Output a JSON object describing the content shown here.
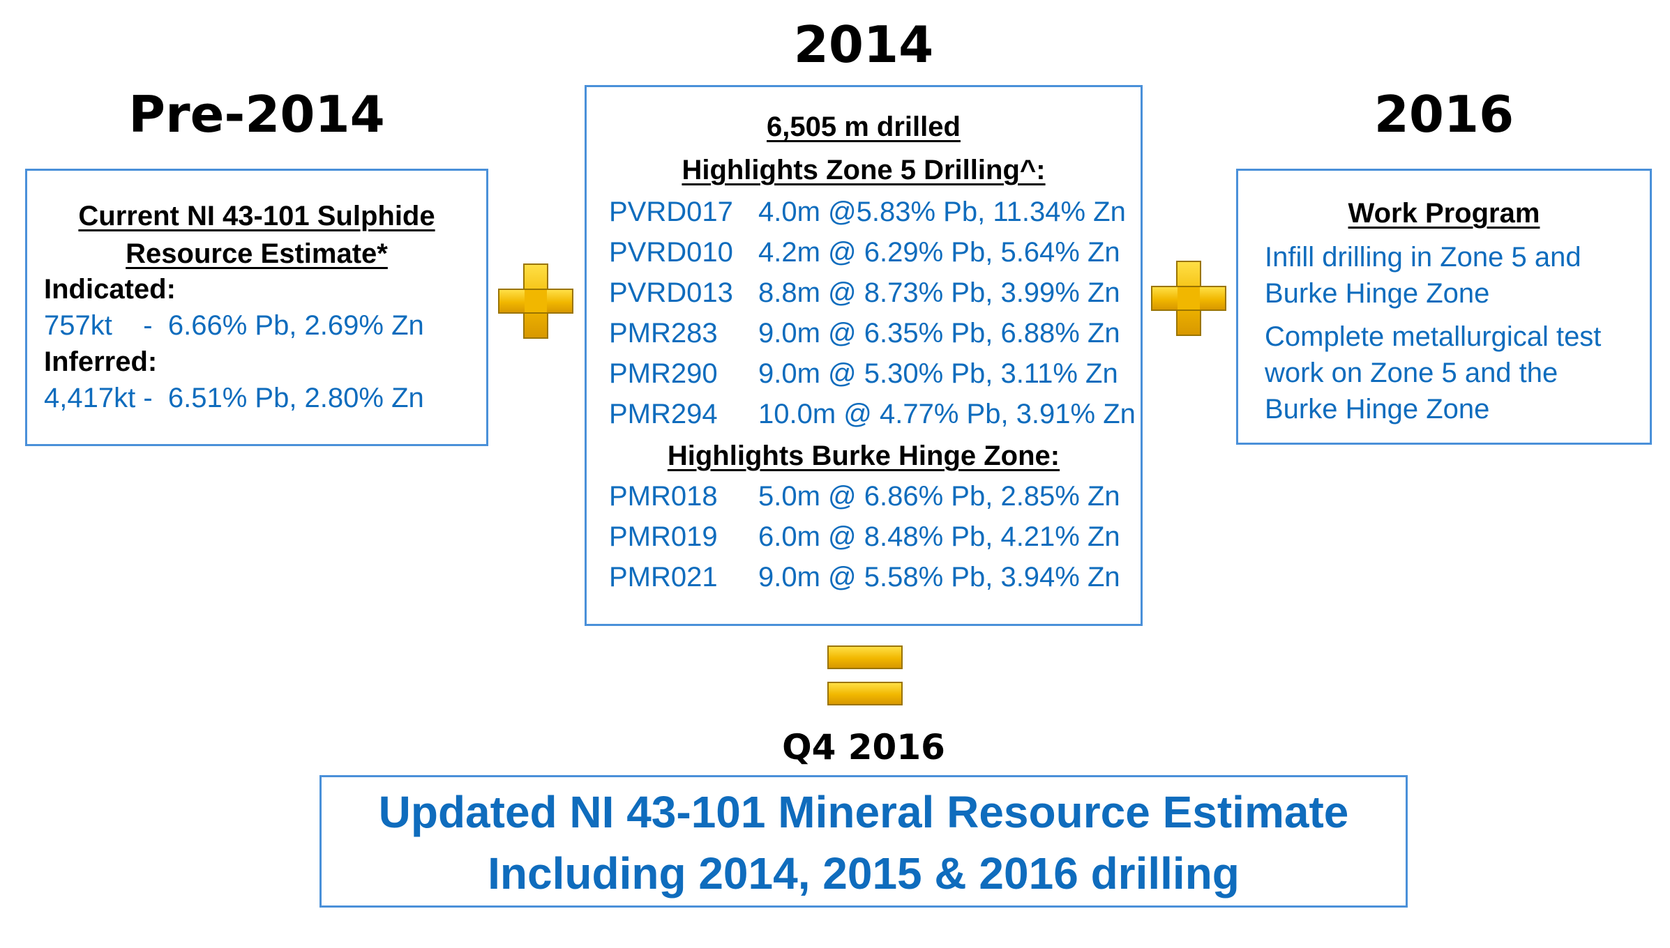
{
  "headings": {
    "pre2014": "Pre-2014",
    "y2014": "2014",
    "y2016": "2016",
    "q4_2016": "Q4 2016"
  },
  "left_box": {
    "title_line1": "Current NI 43-101 Sulphide",
    "title_line2": "Resource Estimate*",
    "indicated_label": "Indicated:",
    "indicated_value": "757kt    -  6.66% Pb, 2.69% Zn",
    "inferred_label": "Inferred:",
    "inferred_value": "4,417kt -  6.51% Pb, 2.80% Zn"
  },
  "center_box": {
    "drilled": "6,505 m drilled",
    "zone5_title": "Highlights Zone 5 Drilling^:",
    "zone5_rows": [
      {
        "hole": "PVRD017",
        "result": "4.0m @5.83% Pb, 11.34% Zn"
      },
      {
        "hole": "PVRD010",
        "result": "4.2m @ 6.29% Pb, 5.64% Zn"
      },
      {
        "hole": "PVRD013",
        "result": "8.8m @ 8.73% Pb, 3.99% Zn"
      },
      {
        "hole": "PMR283",
        "result": "9.0m @ 6.35% Pb, 6.88% Zn"
      },
      {
        "hole": "PMR290",
        "result": "9.0m @ 5.30% Pb, 3.11% Zn"
      },
      {
        "hole": "PMR294",
        "result": "10.0m @ 4.77% Pb, 3.91% Zn"
      }
    ],
    "burke_title": "Highlights Burke Hinge Zone:",
    "burke_rows": [
      {
        "hole": "PMR018",
        "result": "5.0m @ 6.86% Pb, 2.85% Zn"
      },
      {
        "hole": "PMR019",
        "result": "6.0m @ 8.48% Pb, 4.21% Zn"
      },
      {
        "hole": "PMR021",
        "result": "9.0m @ 5.58% Pb, 3.94% Zn"
      }
    ]
  },
  "right_box": {
    "title": "Work Program",
    "item1_line1": "Infill drilling in Zone 5 and",
    "item1_line2": "Burke Hinge Zone",
    "item2_line1": "Complete metallurgical test",
    "item2_line2": "work on Zone 5 and the",
    "item2_line3": "Burke Hinge Zone"
  },
  "final_box": {
    "line1": "Updated NI 43-101 Mineral Resource Estimate",
    "line2": "Including 2014, 2015 & 2016 drilling"
  },
  "colors": {
    "border": "#4a90d9",
    "text_blue": "#0f6cbd",
    "gold": "#f1b700"
  },
  "icons": [
    "plus-icon",
    "plus-icon",
    "equals-icon"
  ]
}
